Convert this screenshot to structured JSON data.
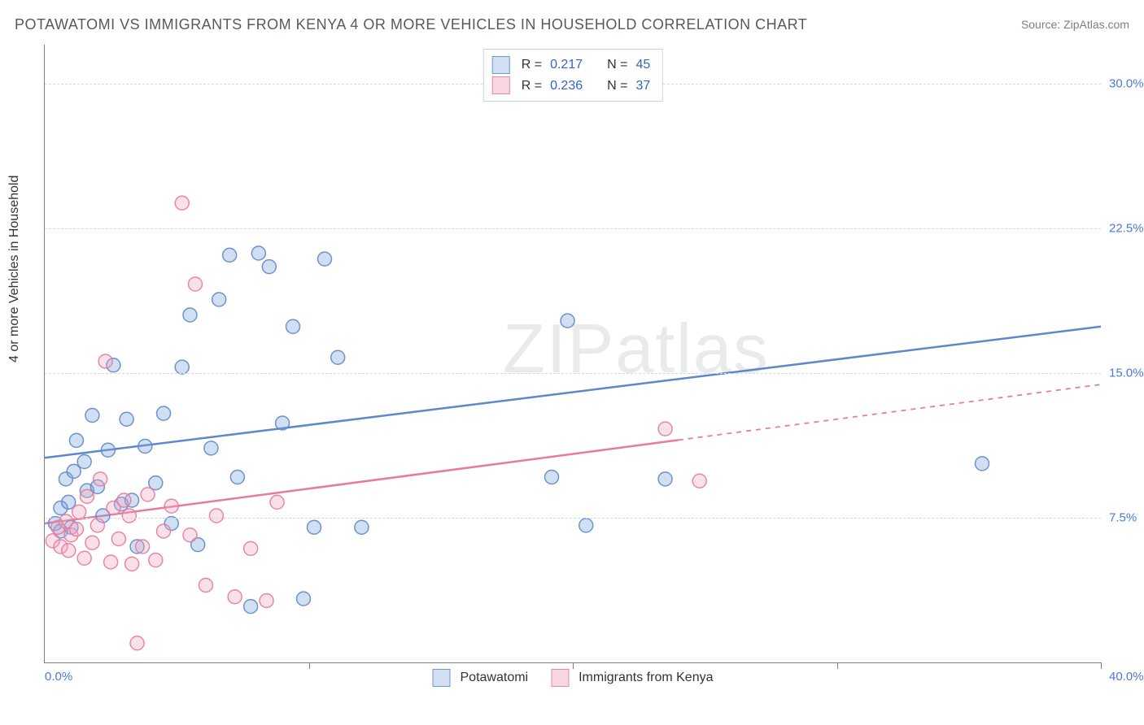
{
  "title": "POTAWATOMI VS IMMIGRANTS FROM KENYA 4 OR MORE VEHICLES IN HOUSEHOLD CORRELATION CHART",
  "source_label": "Source:",
  "source_name": "ZipAtlas.com",
  "watermark": "ZIPatlas",
  "ylabel": "4 or more Vehicles in Household",
  "chart": {
    "type": "scatter_with_regression",
    "background_color": "#ffffff",
    "grid_color": "#d6d8db",
    "axis_color": "#7b7f86",
    "tick_color": "#4a7bd0",
    "xlim": [
      0,
      40
    ],
    "ylim": [
      0,
      32
    ],
    "xtick_left": "0.0%",
    "xtick_right": "40.0%",
    "x_minor_ticks": [
      10,
      20,
      30,
      40
    ],
    "yticks": [
      {
        "v": 7.5,
        "label": "7.5%"
      },
      {
        "v": 15.0,
        "label": "15.0%"
      },
      {
        "v": 22.5,
        "label": "22.5%"
      },
      {
        "v": 30.0,
        "label": "30.0%"
      }
    ],
    "marker_radius": 8.5,
    "marker_opacity": 0.35,
    "marker_stroke_opacity": 0.9,
    "line_width": 2.5
  },
  "series": [
    {
      "name": "Potawatomi",
      "color_fill": "#7ba3dc",
      "color_stroke": "#5d88c9",
      "R": "0.217",
      "N": "45",
      "line": {
        "x1": 0,
        "y1": 10.6,
        "x2": 40,
        "y2": 17.4,
        "dashed_from_x": null
      },
      "points": [
        [
          0.4,
          7.2
        ],
        [
          0.6,
          6.8
        ],
        [
          0.6,
          8.0
        ],
        [
          0.8,
          9.5
        ],
        [
          0.9,
          8.3
        ],
        [
          1.0,
          7.0
        ],
        [
          1.1,
          9.9
        ],
        [
          1.2,
          11.5
        ],
        [
          1.5,
          10.4
        ],
        [
          1.6,
          8.9
        ],
        [
          1.8,
          12.8
        ],
        [
          2.0,
          9.1
        ],
        [
          2.2,
          7.6
        ],
        [
          2.4,
          11.0
        ],
        [
          2.6,
          15.4
        ],
        [
          2.9,
          8.2
        ],
        [
          3.1,
          12.6
        ],
        [
          3.3,
          8.4
        ],
        [
          3.5,
          6.0
        ],
        [
          3.8,
          11.2
        ],
        [
          4.2,
          9.3
        ],
        [
          4.5,
          12.9
        ],
        [
          4.8,
          7.2
        ],
        [
          5.2,
          15.3
        ],
        [
          5.5,
          18.0
        ],
        [
          5.8,
          6.1
        ],
        [
          6.3,
          11.1
        ],
        [
          6.6,
          18.8
        ],
        [
          7.0,
          21.1
        ],
        [
          7.3,
          9.6
        ],
        [
          7.8,
          2.9
        ],
        [
          8.1,
          21.2
        ],
        [
          8.5,
          20.5
        ],
        [
          9.0,
          12.4
        ],
        [
          9.4,
          17.4
        ],
        [
          9.8,
          3.3
        ],
        [
          10.2,
          7.0
        ],
        [
          10.6,
          20.9
        ],
        [
          11.1,
          15.8
        ],
        [
          12.0,
          7.0
        ],
        [
          19.2,
          9.6
        ],
        [
          19.8,
          17.7
        ],
        [
          20.5,
          7.1
        ],
        [
          23.5,
          9.5
        ],
        [
          35.5,
          10.3
        ]
      ]
    },
    {
      "name": "Immigrants from Kenya",
      "color_fill": "#f1aac0",
      "color_stroke": "#e77a9d",
      "R": "0.236",
      "N": "37",
      "line": {
        "x1": 0,
        "y1": 7.2,
        "x2": 40,
        "y2": 14.4,
        "dashed_from_x": 24
      },
      "points": [
        [
          0.3,
          6.3
        ],
        [
          0.5,
          7.0
        ],
        [
          0.6,
          6.0
        ],
        [
          0.8,
          7.3
        ],
        [
          0.9,
          5.8
        ],
        [
          1.0,
          6.6
        ],
        [
          1.2,
          6.9
        ],
        [
          1.3,
          7.8
        ],
        [
          1.5,
          5.4
        ],
        [
          1.6,
          8.6
        ],
        [
          1.8,
          6.2
        ],
        [
          2.0,
          7.1
        ],
        [
          2.1,
          9.5
        ],
        [
          2.3,
          15.6
        ],
        [
          2.5,
          5.2
        ],
        [
          2.6,
          8.0
        ],
        [
          2.8,
          6.4
        ],
        [
          3.0,
          8.4
        ],
        [
          3.2,
          7.6
        ],
        [
          3.3,
          5.1
        ],
        [
          3.5,
          1.0
        ],
        [
          3.7,
          6.0
        ],
        [
          3.9,
          8.7
        ],
        [
          4.2,
          5.3
        ],
        [
          4.5,
          6.8
        ],
        [
          4.8,
          8.1
        ],
        [
          5.2,
          23.8
        ],
        [
          5.5,
          6.6
        ],
        [
          5.7,
          19.6
        ],
        [
          6.1,
          4.0
        ],
        [
          6.5,
          7.6
        ],
        [
          7.2,
          3.4
        ],
        [
          7.8,
          5.9
        ],
        [
          8.4,
          3.2
        ],
        [
          8.8,
          8.3
        ],
        [
          23.5,
          12.1
        ],
        [
          24.8,
          9.4
        ]
      ]
    }
  ],
  "legend_top": {
    "R_label": "R  =",
    "N_label": "N  ="
  },
  "legend_bottom": {
    "items": [
      "Potawatomi",
      "Immigrants from Kenya"
    ]
  }
}
